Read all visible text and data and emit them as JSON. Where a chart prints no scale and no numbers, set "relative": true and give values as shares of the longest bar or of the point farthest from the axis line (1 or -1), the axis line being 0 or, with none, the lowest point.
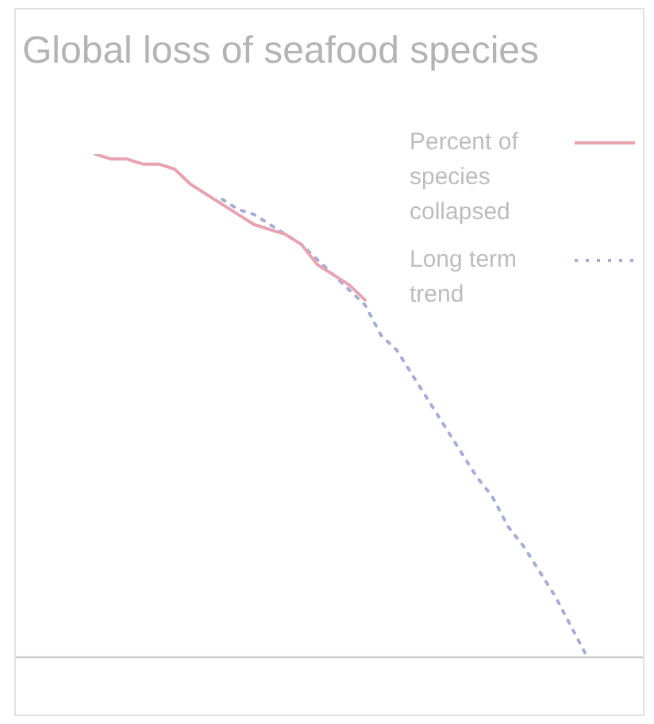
{
  "chart_data": {
    "type": "line",
    "title": "Global loss of seafood species",
    "relative": true,
    "categories": [
      null,
      null,
      null,
      null,
      null,
      null,
      null,
      null,
      null,
      null,
      null,
      null,
      null,
      null,
      null,
      null,
      null,
      null,
      null,
      null,
      null,
      null,
      null,
      null,
      null,
      null,
      null,
      null,
      null,
      null,
      null,
      null
    ],
    "series": [
      {
        "name": "Percent of species collapsed",
        "color": "#e8a3b3",
        "line_style": "solid",
        "values": [
          1.0,
          0.99,
          0.99,
          0.98,
          0.98,
          0.97,
          0.94,
          0.92,
          0.9,
          0.88,
          0.86,
          0.85,
          0.84,
          0.82,
          0.78,
          0.76,
          0.74,
          0.71,
          null,
          null,
          null,
          null,
          null,
          null,
          null,
          null,
          null,
          null,
          null,
          null,
          null,
          null
        ]
      },
      {
        "name": "Long term trend",
        "color": "#a7aed3",
        "line_style": "dotted",
        "values": [
          null,
          null,
          null,
          null,
          null,
          null,
          null,
          null,
          0.91,
          0.89,
          0.88,
          0.86,
          0.84,
          0.82,
          0.79,
          0.76,
          0.73,
          0.7,
          0.64,
          0.61,
          0.56,
          0.51,
          0.46,
          0.41,
          0.36,
          0.32,
          0.26,
          0.22,
          0.17,
          0.12,
          0.06,
          0.0
        ]
      }
    ],
    "legend": "top right",
    "grid": false,
    "marker": "none"
  }
}
